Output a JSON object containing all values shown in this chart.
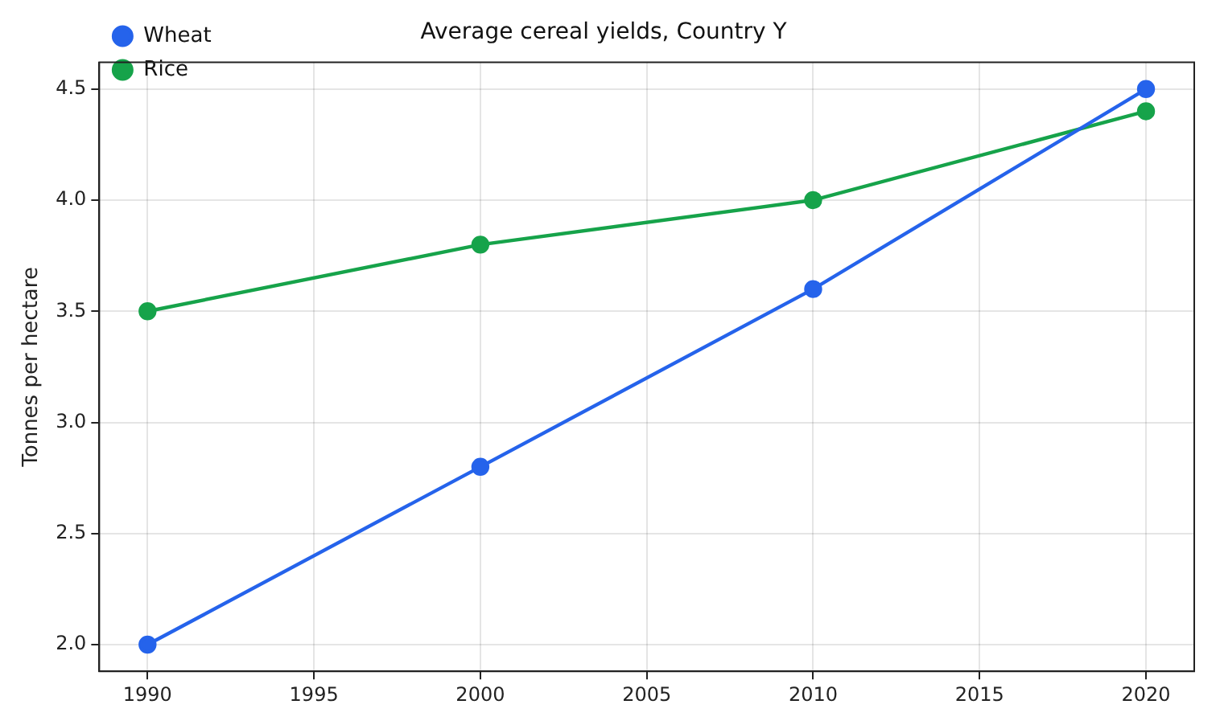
{
  "chart_data": {
    "type": "line",
    "title": "Average cereal yields, Country Y",
    "ylabel": "Tonnes per hectare",
    "x": [
      1990,
      2000,
      2010,
      2020
    ],
    "series": [
      {
        "name": "Wheat",
        "color": "#2563eb",
        "values": [
          2.0,
          2.8,
          3.6,
          4.5
        ]
      },
      {
        "name": "Rice",
        "color": "#16a34a",
        "values": [
          3.5,
          3.8,
          4.0,
          4.4
        ]
      }
    ],
    "xlim": [
      1988.55,
      2021.45
    ],
    "xticks": [
      1990,
      1995,
      2000,
      2005,
      2010,
      2015,
      2020
    ],
    "ylim": [
      1.88,
      4.62
    ],
    "yticks": [
      {
        "value": 2.0,
        "label": "2.0"
      },
      {
        "value": 2.5,
        "label": "2.5"
      },
      {
        "value": 3.0,
        "label": "3.0"
      },
      {
        "value": 3.5,
        "label": "3.5"
      },
      {
        "value": 4.0,
        "label": "4.0"
      },
      {
        "value": 4.5,
        "label": "4.5"
      }
    ],
    "grid": true,
    "legend": "top left",
    "marker": "circle",
    "line_style": "solid"
  }
}
